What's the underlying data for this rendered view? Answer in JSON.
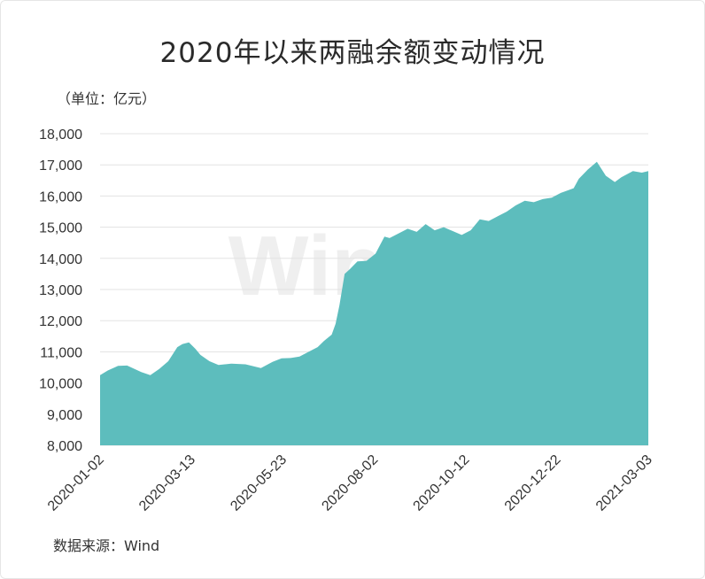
{
  "title": "2020年以来两融余额变动情况",
  "unit_label": "（单位：亿元）",
  "source_label": "数据来源：Wind",
  "watermark": "Win.d",
  "colors": {
    "area": "#5dbdbd",
    "grid": "#e3e3e3",
    "text": "#333333"
  },
  "chart_data": {
    "type": "area",
    "title": "2020年以来两融余额变动情况",
    "ylabel": "（单位：亿元）",
    "ylim": [
      8000,
      18000
    ],
    "yticks": [
      8000,
      9000,
      10000,
      11000,
      12000,
      13000,
      14000,
      15000,
      16000,
      17000,
      18000
    ],
    "ytick_labels": [
      "8,000",
      "9,000",
      "10,000",
      "11,000",
      "12,000",
      "13,000",
      "14,000",
      "15,000",
      "16,000",
      "17,000",
      "18,000"
    ],
    "xtick_labels": [
      "2020-01-02",
      "2020-03-13",
      "2020-05-23",
      "2020-08-02",
      "2020-10-12",
      "2020-12-22",
      "2021-03-03"
    ],
    "grid": "horizontal",
    "series": [
      {
        "x": [
          "2020-01-02",
          "2020-01-08",
          "2020-01-16",
          "2020-01-23",
          "2020-02-03",
          "2020-02-10",
          "2020-02-17",
          "2020-02-24",
          "2020-03-02",
          "2020-03-06",
          "2020-03-11",
          "2020-03-16",
          "2020-03-20",
          "2020-03-27",
          "2020-04-03",
          "2020-04-13",
          "2020-04-24",
          "2020-05-06",
          "2020-05-15",
          "2020-05-22",
          "2020-05-29",
          "2020-06-05",
          "2020-06-12",
          "2020-06-19",
          "2020-06-24",
          "2020-06-30",
          "2020-07-03",
          "2020-07-06",
          "2020-07-08",
          "2020-07-10",
          "2020-07-14",
          "2020-07-20",
          "2020-07-27",
          "2020-08-03",
          "2020-08-10",
          "2020-08-14",
          "2020-08-21",
          "2020-08-28",
          "2020-09-04",
          "2020-09-11",
          "2020-09-18",
          "2020-09-25",
          "2020-10-09",
          "2020-10-16",
          "2020-10-23",
          "2020-10-30",
          "2020-11-06",
          "2020-11-13",
          "2020-11-20",
          "2020-11-27",
          "2020-12-04",
          "2020-12-11",
          "2020-12-18",
          "2020-12-25",
          "2021-01-04",
          "2021-01-08",
          "2021-01-15",
          "2021-01-22",
          "2021-01-29",
          "2021-02-05",
          "2021-02-10",
          "2021-02-19",
          "2021-02-26",
          "2021-03-03"
        ],
        "values": [
          10250,
          10400,
          10550,
          10560,
          10350,
          10250,
          10450,
          10700,
          11150,
          11250,
          11300,
          11100,
          10900,
          10700,
          10580,
          10620,
          10600,
          10480,
          10680,
          10790,
          10800,
          10850,
          11000,
          11150,
          11350,
          11550,
          11900,
          12500,
          13000,
          13500,
          13650,
          13900,
          13920,
          14150,
          14700,
          14650,
          14800,
          14950,
          14850,
          15100,
          14900,
          15000,
          14750,
          14900,
          15250,
          15200,
          15350,
          15500,
          15700,
          15850,
          15800,
          15900,
          15950,
          16100,
          16250,
          16550,
          16850,
          17100,
          16650,
          16450,
          16600,
          16800,
          16750,
          16800
        ]
      }
    ]
  }
}
